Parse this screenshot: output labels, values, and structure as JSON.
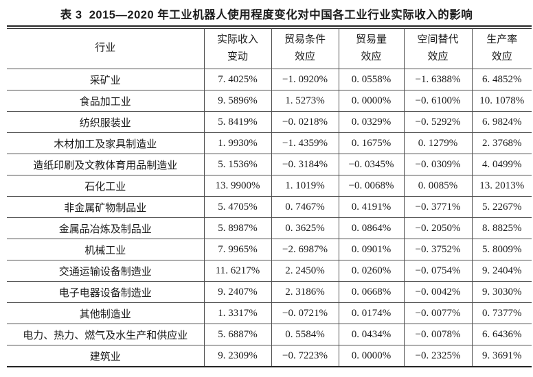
{
  "title": "表 3  2015—2020 年工业机器人使用程度变化对中国各工业行业实际收入的影响",
  "table": {
    "columns": [
      {
        "line1": "行业",
        "line2": ""
      },
      {
        "line1": "实际收入",
        "line2": "变动"
      },
      {
        "line1": "贸易条件",
        "line2": "效应"
      },
      {
        "line1": "贸易量",
        "line2": "效应"
      },
      {
        "line1": "空间替代",
        "line2": "效应"
      },
      {
        "line1": "生产率",
        "line2": "效应"
      }
    ],
    "rows": [
      {
        "industry": "采矿业",
        "values": [
          "7. 4025%",
          "−1. 0920%",
          "0. 0558%",
          "−1. 6388%",
          "6. 4852%"
        ]
      },
      {
        "industry": "食品加工业",
        "values": [
          "9. 5896%",
          "1. 5273%",
          "0. 0000%",
          "−0. 6100%",
          "10. 1078%"
        ]
      },
      {
        "industry": "纺织服装业",
        "values": [
          "5. 8419%",
          "−0. 0218%",
          "0. 0329%",
          "−0. 5292%",
          "6. 9824%"
        ]
      },
      {
        "industry": "木材加工及家具制造业",
        "values": [
          "1. 9930%",
          "−1. 4359%",
          "0. 1675%",
          "0. 1279%",
          "2. 3768%"
        ]
      },
      {
        "industry": "造纸印刷及文教体育用品制造业",
        "values": [
          "5. 1536%",
          "−0. 3184%",
          "−0. 0345%",
          "−0. 0309%",
          "4. 0499%"
        ]
      },
      {
        "industry": "石化工业",
        "values": [
          "13. 9900%",
          "1. 1019%",
          "−0. 0068%",
          "0. 0085%",
          "13. 2013%"
        ]
      },
      {
        "industry": "非金属矿物制品业",
        "values": [
          "5. 4705%",
          "0. 7467%",
          "0. 4191%",
          "−0. 3771%",
          "5. 2267%"
        ]
      },
      {
        "industry": "金属品冶炼及制品业",
        "values": [
          "5. 8987%",
          "0. 3625%",
          "0. 0864%",
          "−0. 2050%",
          "8. 8825%"
        ]
      },
      {
        "industry": "机械工业",
        "values": [
          "7. 9965%",
          "−2. 6987%",
          "0. 0901%",
          "−0. 3752%",
          "5. 8009%"
        ]
      },
      {
        "industry": "交通运输设备制造业",
        "values": [
          "11. 6217%",
          "2. 2450%",
          "0. 0260%",
          "−0. 0754%",
          "9. 2404%"
        ]
      },
      {
        "industry": "电子电器设备制造业",
        "values": [
          "9. 2407%",
          "2. 3186%",
          "0. 0668%",
          "−0. 0042%",
          "9. 3030%"
        ]
      },
      {
        "industry": "其他制造业",
        "values": [
          "1. 3317%",
          "−0. 0721%",
          "0. 0174%",
          "−0. 0077%",
          "0. 7377%"
        ]
      },
      {
        "industry": "电力、热力、燃气及水生产和供应业",
        "values": [
          "5. 6887%",
          "0. 5584%",
          "0. 0434%",
          "−0. 0078%",
          "6. 6436%"
        ]
      },
      {
        "industry": "建筑业",
        "values": [
          "9. 2309%",
          "−0. 7223%",
          "0. 0000%",
          "−0. 2325%",
          "9. 3691%"
        ]
      }
    ]
  }
}
